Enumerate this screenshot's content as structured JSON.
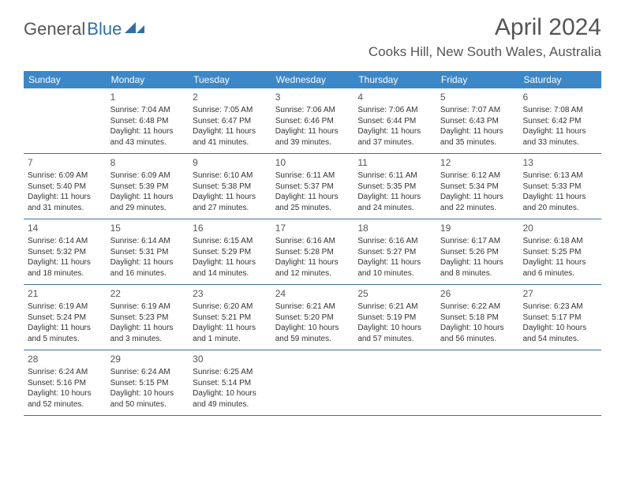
{
  "logo": {
    "text1": "General",
    "text2": "Blue"
  },
  "title": "April 2024",
  "location": "Cooks Hill, New South Wales, Australia",
  "colors": {
    "header_bg": "#3b87c8",
    "header_text": "#ffffff",
    "border": "#3b6f9f",
    "title_color": "#555555",
    "body_text": "#333333",
    "logo_gray": "#555555",
    "logo_blue": "#2f6fa8"
  },
  "day_labels": [
    "Sunday",
    "Monday",
    "Tuesday",
    "Wednesday",
    "Thursday",
    "Friday",
    "Saturday"
  ],
  "weeks": [
    [
      null,
      {
        "n": "1",
        "sr": "Sunrise: 7:04 AM",
        "ss": "Sunset: 6:48 PM",
        "dl": "Daylight: 11 hours and 43 minutes."
      },
      {
        "n": "2",
        "sr": "Sunrise: 7:05 AM",
        "ss": "Sunset: 6:47 PM",
        "dl": "Daylight: 11 hours and 41 minutes."
      },
      {
        "n": "3",
        "sr": "Sunrise: 7:06 AM",
        "ss": "Sunset: 6:46 PM",
        "dl": "Daylight: 11 hours and 39 minutes."
      },
      {
        "n": "4",
        "sr": "Sunrise: 7:06 AM",
        "ss": "Sunset: 6:44 PM",
        "dl": "Daylight: 11 hours and 37 minutes."
      },
      {
        "n": "5",
        "sr": "Sunrise: 7:07 AM",
        "ss": "Sunset: 6:43 PM",
        "dl": "Daylight: 11 hours and 35 minutes."
      },
      {
        "n": "6",
        "sr": "Sunrise: 7:08 AM",
        "ss": "Sunset: 6:42 PM",
        "dl": "Daylight: 11 hours and 33 minutes."
      }
    ],
    [
      {
        "n": "7",
        "sr": "Sunrise: 6:09 AM",
        "ss": "Sunset: 5:40 PM",
        "dl": "Daylight: 11 hours and 31 minutes."
      },
      {
        "n": "8",
        "sr": "Sunrise: 6:09 AM",
        "ss": "Sunset: 5:39 PM",
        "dl": "Daylight: 11 hours and 29 minutes."
      },
      {
        "n": "9",
        "sr": "Sunrise: 6:10 AM",
        "ss": "Sunset: 5:38 PM",
        "dl": "Daylight: 11 hours and 27 minutes."
      },
      {
        "n": "10",
        "sr": "Sunrise: 6:11 AM",
        "ss": "Sunset: 5:37 PM",
        "dl": "Daylight: 11 hours and 25 minutes."
      },
      {
        "n": "11",
        "sr": "Sunrise: 6:11 AM",
        "ss": "Sunset: 5:35 PM",
        "dl": "Daylight: 11 hours and 24 minutes."
      },
      {
        "n": "12",
        "sr": "Sunrise: 6:12 AM",
        "ss": "Sunset: 5:34 PM",
        "dl": "Daylight: 11 hours and 22 minutes."
      },
      {
        "n": "13",
        "sr": "Sunrise: 6:13 AM",
        "ss": "Sunset: 5:33 PM",
        "dl": "Daylight: 11 hours and 20 minutes."
      }
    ],
    [
      {
        "n": "14",
        "sr": "Sunrise: 6:14 AM",
        "ss": "Sunset: 5:32 PM",
        "dl": "Daylight: 11 hours and 18 minutes."
      },
      {
        "n": "15",
        "sr": "Sunrise: 6:14 AM",
        "ss": "Sunset: 5:31 PM",
        "dl": "Daylight: 11 hours and 16 minutes."
      },
      {
        "n": "16",
        "sr": "Sunrise: 6:15 AM",
        "ss": "Sunset: 5:29 PM",
        "dl": "Daylight: 11 hours and 14 minutes."
      },
      {
        "n": "17",
        "sr": "Sunrise: 6:16 AM",
        "ss": "Sunset: 5:28 PM",
        "dl": "Daylight: 11 hours and 12 minutes."
      },
      {
        "n": "18",
        "sr": "Sunrise: 6:16 AM",
        "ss": "Sunset: 5:27 PM",
        "dl": "Daylight: 11 hours and 10 minutes."
      },
      {
        "n": "19",
        "sr": "Sunrise: 6:17 AM",
        "ss": "Sunset: 5:26 PM",
        "dl": "Daylight: 11 hours and 8 minutes."
      },
      {
        "n": "20",
        "sr": "Sunrise: 6:18 AM",
        "ss": "Sunset: 5:25 PM",
        "dl": "Daylight: 11 hours and 6 minutes."
      }
    ],
    [
      {
        "n": "21",
        "sr": "Sunrise: 6:19 AM",
        "ss": "Sunset: 5:24 PM",
        "dl": "Daylight: 11 hours and 5 minutes."
      },
      {
        "n": "22",
        "sr": "Sunrise: 6:19 AM",
        "ss": "Sunset: 5:23 PM",
        "dl": "Daylight: 11 hours and 3 minutes."
      },
      {
        "n": "23",
        "sr": "Sunrise: 6:20 AM",
        "ss": "Sunset: 5:21 PM",
        "dl": "Daylight: 11 hours and 1 minute."
      },
      {
        "n": "24",
        "sr": "Sunrise: 6:21 AM",
        "ss": "Sunset: 5:20 PM",
        "dl": "Daylight: 10 hours and 59 minutes."
      },
      {
        "n": "25",
        "sr": "Sunrise: 6:21 AM",
        "ss": "Sunset: 5:19 PM",
        "dl": "Daylight: 10 hours and 57 minutes."
      },
      {
        "n": "26",
        "sr": "Sunrise: 6:22 AM",
        "ss": "Sunset: 5:18 PM",
        "dl": "Daylight: 10 hours and 56 minutes."
      },
      {
        "n": "27",
        "sr": "Sunrise: 6:23 AM",
        "ss": "Sunset: 5:17 PM",
        "dl": "Daylight: 10 hours and 54 minutes."
      }
    ],
    [
      {
        "n": "28",
        "sr": "Sunrise: 6:24 AM",
        "ss": "Sunset: 5:16 PM",
        "dl": "Daylight: 10 hours and 52 minutes."
      },
      {
        "n": "29",
        "sr": "Sunrise: 6:24 AM",
        "ss": "Sunset: 5:15 PM",
        "dl": "Daylight: 10 hours and 50 minutes."
      },
      {
        "n": "30",
        "sr": "Sunrise: 6:25 AM",
        "ss": "Sunset: 5:14 PM",
        "dl": "Daylight: 10 hours and 49 minutes."
      },
      null,
      null,
      null,
      null
    ]
  ]
}
